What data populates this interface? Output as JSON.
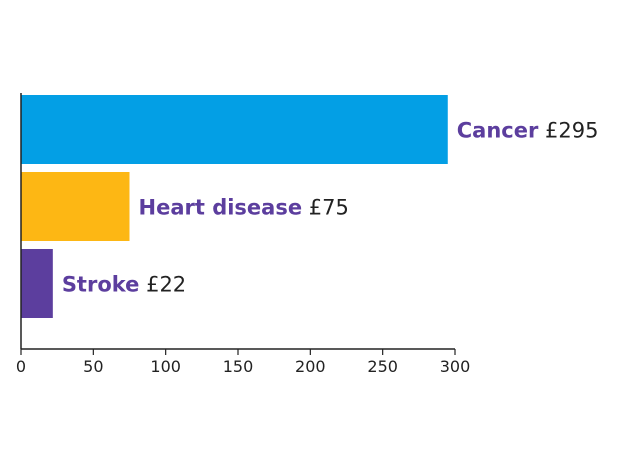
{
  "chart_data": {
    "type": "bar",
    "orientation": "horizontal",
    "categories": [
      "Cancer",
      "Heart disease",
      "Stroke"
    ],
    "values": [
      295,
      75,
      22
    ],
    "value_labels": [
      "£295",
      "£75",
      "£22"
    ],
    "colors": [
      "#039FE5",
      "#FDB714",
      "#5C3E9E"
    ],
    "label_color": "#5C3E9E",
    "value_text_color": "#222222",
    "xlim": [
      0,
      300
    ],
    "xticks": [
      0,
      50,
      100,
      150,
      200,
      250,
      300
    ],
    "xtick_labels": [
      "0",
      "50",
      "100",
      "150",
      "200",
      "250",
      "300"
    ],
    "title": "",
    "xlabel": "",
    "ylabel": "",
    "grid": false,
    "legend": "none"
  }
}
